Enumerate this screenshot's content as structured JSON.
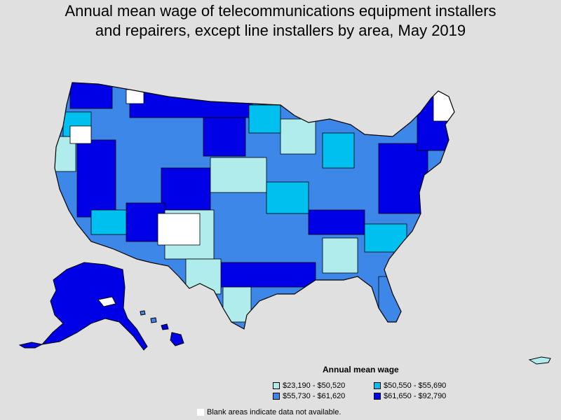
{
  "title": {
    "line1": "Annual mean wage of telecommunications equipment installers",
    "line2": "and repairers, except line installers by area, May 2019"
  },
  "legend": {
    "title": "Annual mean wage",
    "items": [
      {
        "label": "$23,190 - $50,520",
        "color": "#b0ecec"
      },
      {
        "label": "$50,550 - $55,690",
        "color": "#00c0f0"
      },
      {
        "label": "$55,730 - $61,620",
        "color": "#3d87e8"
      },
      {
        "label": "$61,650 - $92,790",
        "color": "#0000e6"
      }
    ],
    "blank_note": "Blank areas indicate data not available.",
    "blank_color": "#ffffff"
  },
  "colors": {
    "background": "#e0e0e0",
    "border": "#000000"
  }
}
